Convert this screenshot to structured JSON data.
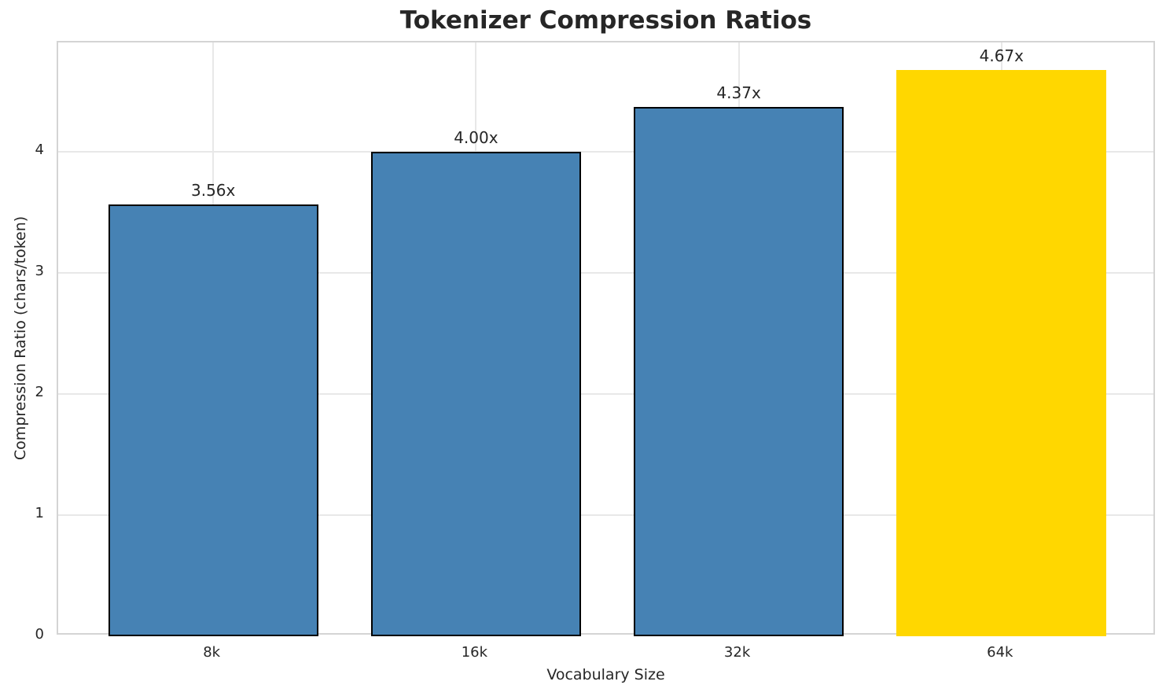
{
  "chart_data": {
    "type": "bar",
    "title": "Tokenizer Compression Ratios",
    "xlabel": "Vocabulary Size",
    "ylabel": "Compression Ratio (chars/token)",
    "categories": [
      "8k",
      "16k",
      "32k",
      "64k"
    ],
    "values": [
      3.56,
      4.0,
      4.37,
      4.67
    ],
    "bar_labels": [
      "3.56x",
      "4.00x",
      "4.37x",
      "4.67x"
    ],
    "yticks": [
      0,
      1,
      2,
      3,
      4
    ],
    "ylim": [
      0,
      4.9
    ],
    "grid": true,
    "legend": false,
    "bar_colors": [
      "#4682B4",
      "#4682B4",
      "#4682B4",
      "#FFD700"
    ],
    "bar_edge_colors": [
      "#000000",
      "#000000",
      "#000000",
      "none"
    ],
    "colors": {
      "bar_default": "#4682B4",
      "bar_highlight": "#FFD700",
      "bar_edge": "#000000",
      "grid": "#e8e8e8",
      "spine": "#d4d4d4",
      "text": "#262626"
    }
  }
}
